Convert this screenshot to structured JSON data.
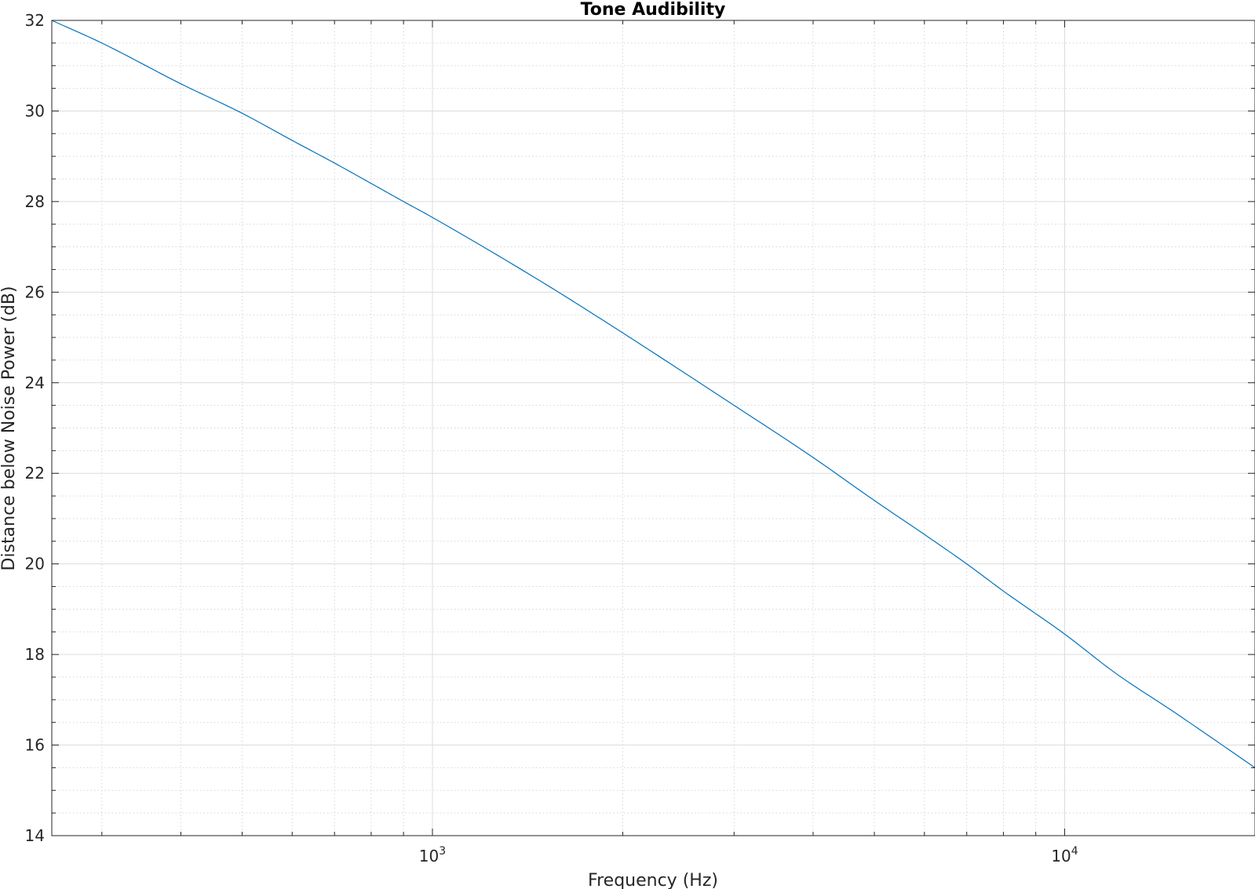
{
  "chart_data": {
    "type": "line",
    "title": "Tone Audibility",
    "xlabel": "Frequency (Hz)",
    "ylabel": "Distance below Noise Power (dB)",
    "xscale": "log",
    "xlim": [
      250,
      20000
    ],
    "ylim": [
      14,
      32
    ],
    "x_tick_labels": [
      {
        "value": 1000,
        "base": "10",
        "exponent": "3"
      },
      {
        "value": 10000,
        "base": "10",
        "exponent": "4"
      }
    ],
    "y_ticks": [
      14,
      16,
      18,
      20,
      22,
      24,
      26,
      28,
      30,
      32
    ],
    "grid": true,
    "minor_grid": true,
    "box": true,
    "series": [
      {
        "color": "#0072BD",
        "x": [
          250,
          300,
          400,
          500,
          600,
          700,
          800,
          900,
          1000,
          1500,
          2000,
          3000,
          4000,
          5000,
          6000,
          7000,
          8000,
          10000,
          12000,
          15000,
          20000
        ],
        "y": [
          32.0,
          31.5,
          30.6,
          29.95,
          29.35,
          28.85,
          28.4,
          28.0,
          27.65,
          26.2,
          25.1,
          23.5,
          22.35,
          21.4,
          20.65,
          20.0,
          19.4,
          18.45,
          17.6,
          16.7,
          15.5
        ]
      }
    ]
  }
}
